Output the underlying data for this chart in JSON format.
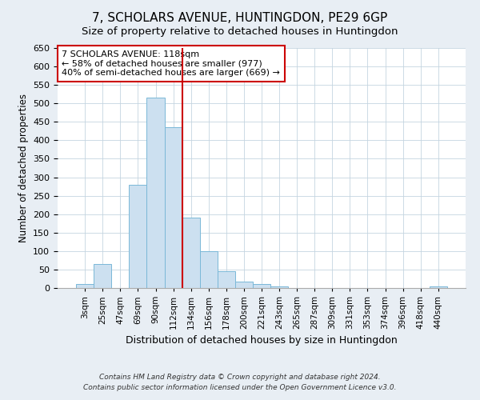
{
  "title": "7, SCHOLARS AVENUE, HUNTINGDON, PE29 6GP",
  "subtitle": "Size of property relative to detached houses in Huntingdon",
  "xlabel": "Distribution of detached houses by size in Huntingdon",
  "ylabel": "Number of detached properties",
  "bar_labels": [
    "3sqm",
    "25sqm",
    "47sqm",
    "69sqm",
    "90sqm",
    "112sqm",
    "134sqm",
    "156sqm",
    "178sqm",
    "200sqm",
    "221sqm",
    "243sqm",
    "265sqm",
    "287sqm",
    "309sqm",
    "331sqm",
    "353sqm",
    "374sqm",
    "396sqm",
    "418sqm",
    "440sqm"
  ],
  "bar_values": [
    10,
    65,
    0,
    280,
    515,
    435,
    190,
    100,
    46,
    18,
    10,
    4,
    0,
    0,
    0,
    0,
    0,
    0,
    0,
    0,
    4
  ],
  "bar_color": "#cce0f0",
  "bar_edge_color": "#7ab8d8",
  "vline_x": 5.5,
  "vline_color": "#cc0000",
  "annotation_title": "7 SCHOLARS AVENUE: 118sqm",
  "annotation_line1": "← 58% of detached houses are smaller (977)",
  "annotation_line2": "40% of semi-detached houses are larger (669) →",
  "annotation_box_color": "#cc0000",
  "ylim": [
    0,
    650
  ],
  "yticks": [
    0,
    50,
    100,
    150,
    200,
    250,
    300,
    350,
    400,
    450,
    500,
    550,
    600,
    650
  ],
  "footer1": "Contains HM Land Registry data © Crown copyright and database right 2024.",
  "footer2": "Contains public sector information licensed under the Open Government Licence v3.0.",
  "bg_color": "#e8eef4",
  "plot_bg_color": "#ffffff",
  "title_fontsize": 11,
  "subtitle_fontsize": 9.5,
  "ylabel_fontsize": 8.5,
  "xlabel_fontsize": 9,
  "tick_fontsize": 8,
  "xtick_fontsize": 7.5,
  "annotation_fontsize": 8,
  "footer_fontsize": 6.5
}
